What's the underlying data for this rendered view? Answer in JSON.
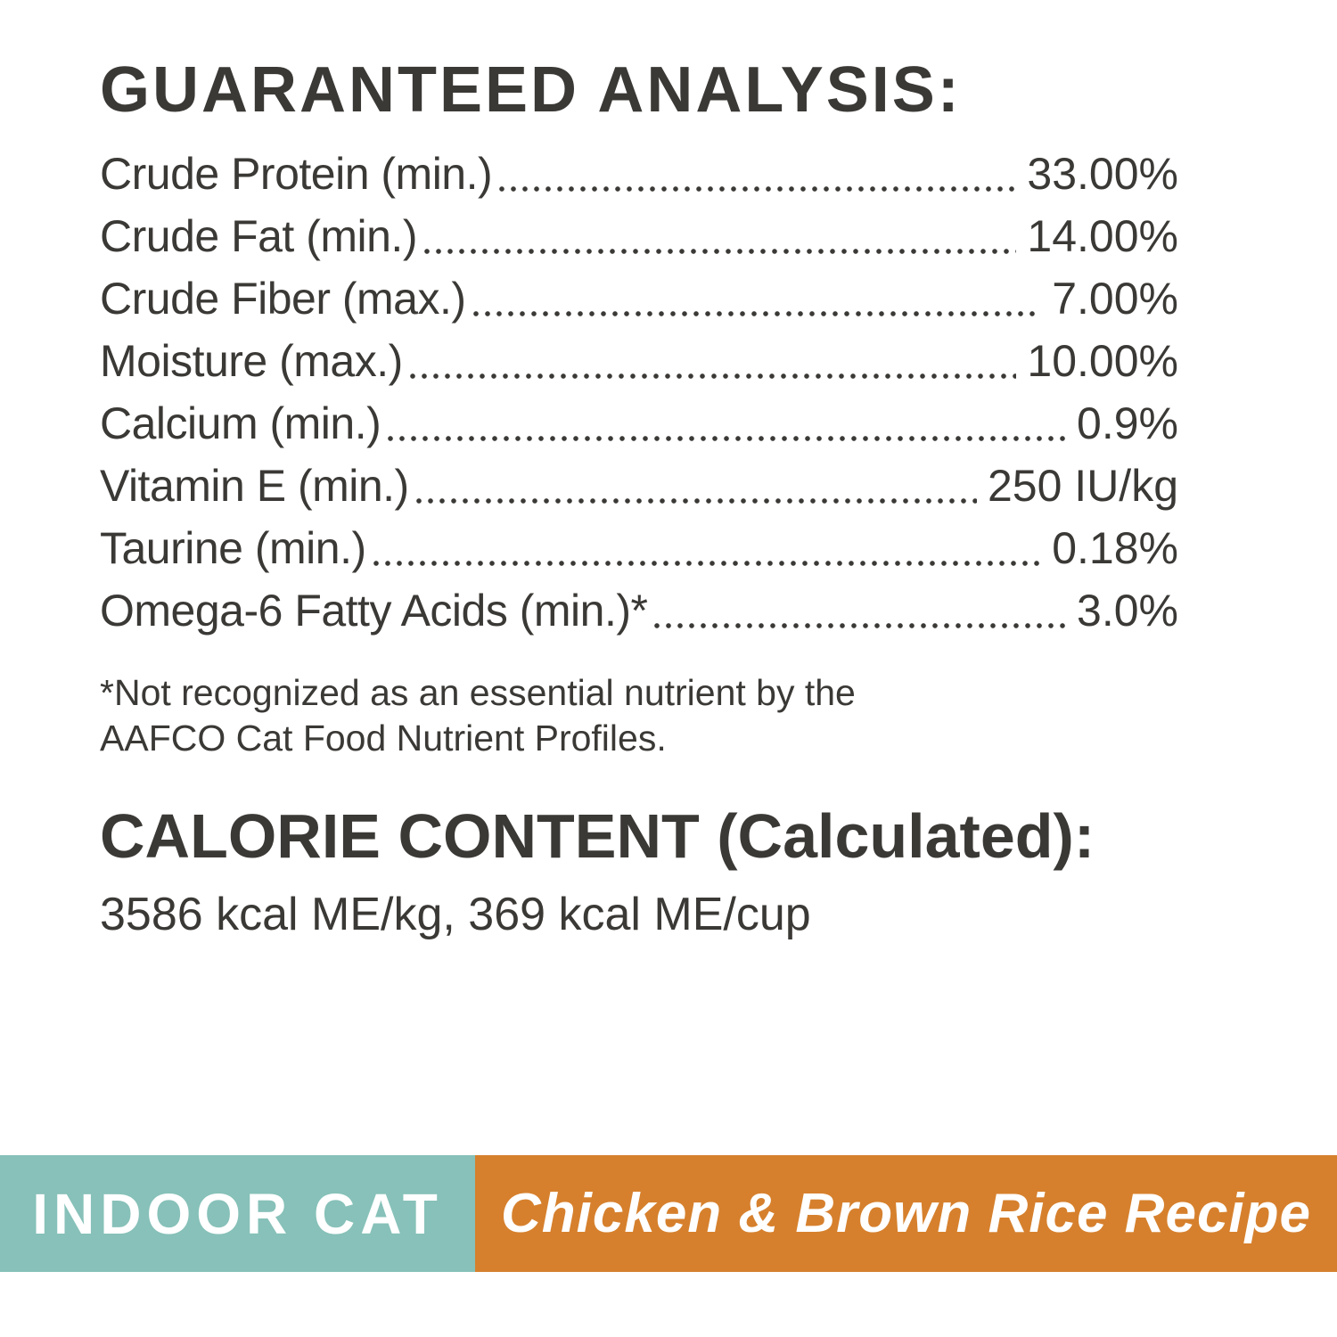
{
  "colors": {
    "text": "#3b3936",
    "background": "#ffffff",
    "banner_teal": "#87c1b9",
    "banner_orange": "#d6802d",
    "banner_text": "#ffffff"
  },
  "guaranteed_analysis": {
    "title": "GUARANTEED ANALYSIS:",
    "rows": [
      {
        "label": "Crude Protein (min.)",
        "value": "33.00%"
      },
      {
        "label": "Crude Fat (min.)",
        "value": "14.00%"
      },
      {
        "label": "Crude Fiber (max.)",
        "value": "7.00%"
      },
      {
        "label": "Moisture (max.)",
        "value": "10.00%"
      },
      {
        "label": "Calcium (min.)",
        "value": "0.9%"
      },
      {
        "label": "Vitamin E (min.)",
        "value": "250 IU/kg"
      },
      {
        "label": "Taurine (min.)",
        "value": "0.18%"
      },
      {
        "label": "Omega-6 Fatty Acids (min.)*",
        "value": "3.0%"
      }
    ],
    "footnote": [
      "*Not recognized as an essential nutrient by the",
      "AAFCO Cat Food Nutrient Profiles."
    ]
  },
  "calorie_content": {
    "title": "CALORIE CONTENT (Calculated):",
    "line": "3586 kcal ME/kg, 369 kcal ME/cup"
  },
  "banner": {
    "left_label": "INDOOR CAT",
    "right_label": "Chicken & Brown Rice Recipe"
  }
}
